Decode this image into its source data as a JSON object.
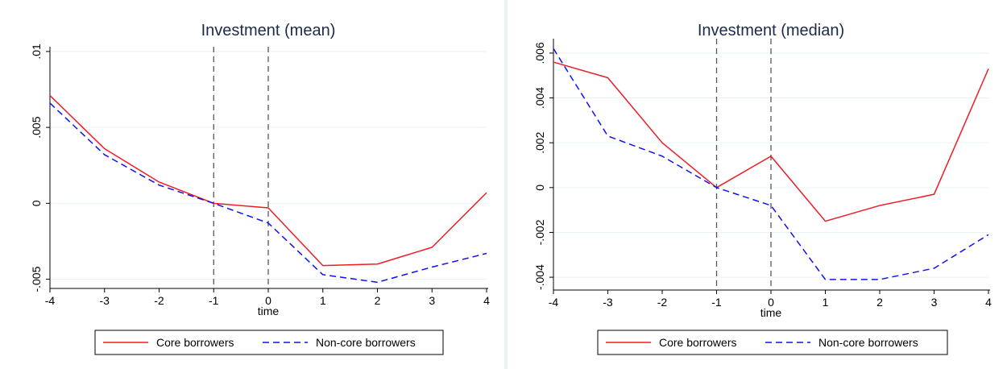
{
  "chart_data": [
    {
      "type": "line",
      "title": "Investment (mean)",
      "xlabel": "time",
      "ylabel": "",
      "x": [
        -4,
        -3,
        -2,
        -1,
        0,
        1,
        2,
        3,
        4
      ],
      "xlim": [
        -4,
        4
      ],
      "ylim": [
        -0.0055,
        0.0101
      ],
      "yticks": [
        -0.005,
        0,
        0.005,
        0.01
      ],
      "ytick_labels": [
        "-.005",
        "0",
        ".005",
        ".01"
      ],
      "xtick_labels": [
        "-4",
        "-3",
        "-2",
        "-1",
        "0",
        "1",
        "2",
        "3",
        "4"
      ],
      "vlines": [
        -1,
        0
      ],
      "grid": true,
      "legend": "bottom",
      "series": [
        {
          "name": "Core borrowers",
          "color": "#ee1c25",
          "style": "solid",
          "values": [
            0.0071,
            0.0036,
            0.0014,
            0.0,
            -0.0003,
            -0.0041,
            -0.004,
            -0.0029,
            0.0007
          ]
        },
        {
          "name": "Non-core borrowers",
          "color": "#1010ee",
          "style": "dashed",
          "values": [
            0.0066,
            0.0032,
            0.0012,
            0.0,
            -0.0013,
            -0.0047,
            -0.0052,
            -0.0042,
            -0.0033
          ]
        }
      ]
    },
    {
      "type": "line",
      "title": "Investment (median)",
      "xlabel": "time",
      "ylabel": "",
      "x": [
        -4,
        -3,
        -2,
        -1,
        0,
        1,
        2,
        3,
        4
      ],
      "xlim": [
        -4,
        4
      ],
      "ylim": [
        -0.0045,
        0.0065
      ],
      "yticks": [
        -0.004,
        -0.002,
        0,
        0.002,
        0.004,
        0.006
      ],
      "ytick_labels": [
        "-.004",
        "-.002",
        "0",
        ".002",
        ".004",
        ".006"
      ],
      "xtick_labels": [
        "-4",
        "-3",
        "-2",
        "-1",
        "0",
        "1",
        "2",
        "3",
        "4"
      ],
      "vlines": [
        -1,
        0
      ],
      "grid": true,
      "legend": "bottom",
      "series": [
        {
          "name": "Core borrowers",
          "color": "#ee1c25",
          "style": "solid",
          "values": [
            0.0056,
            0.0049,
            0.002,
            0.0,
            0.0014,
            -0.0015,
            -0.0008,
            -0.0003,
            0.0053
          ]
        },
        {
          "name": "Non-core borrowers",
          "color": "#1010ee",
          "style": "dashed",
          "values": [
            0.0062,
            0.0023,
            0.0014,
            0.0,
            -0.0008,
            -0.0041,
            -0.0041,
            -0.0036,
            -0.0021
          ]
        }
      ]
    }
  ]
}
